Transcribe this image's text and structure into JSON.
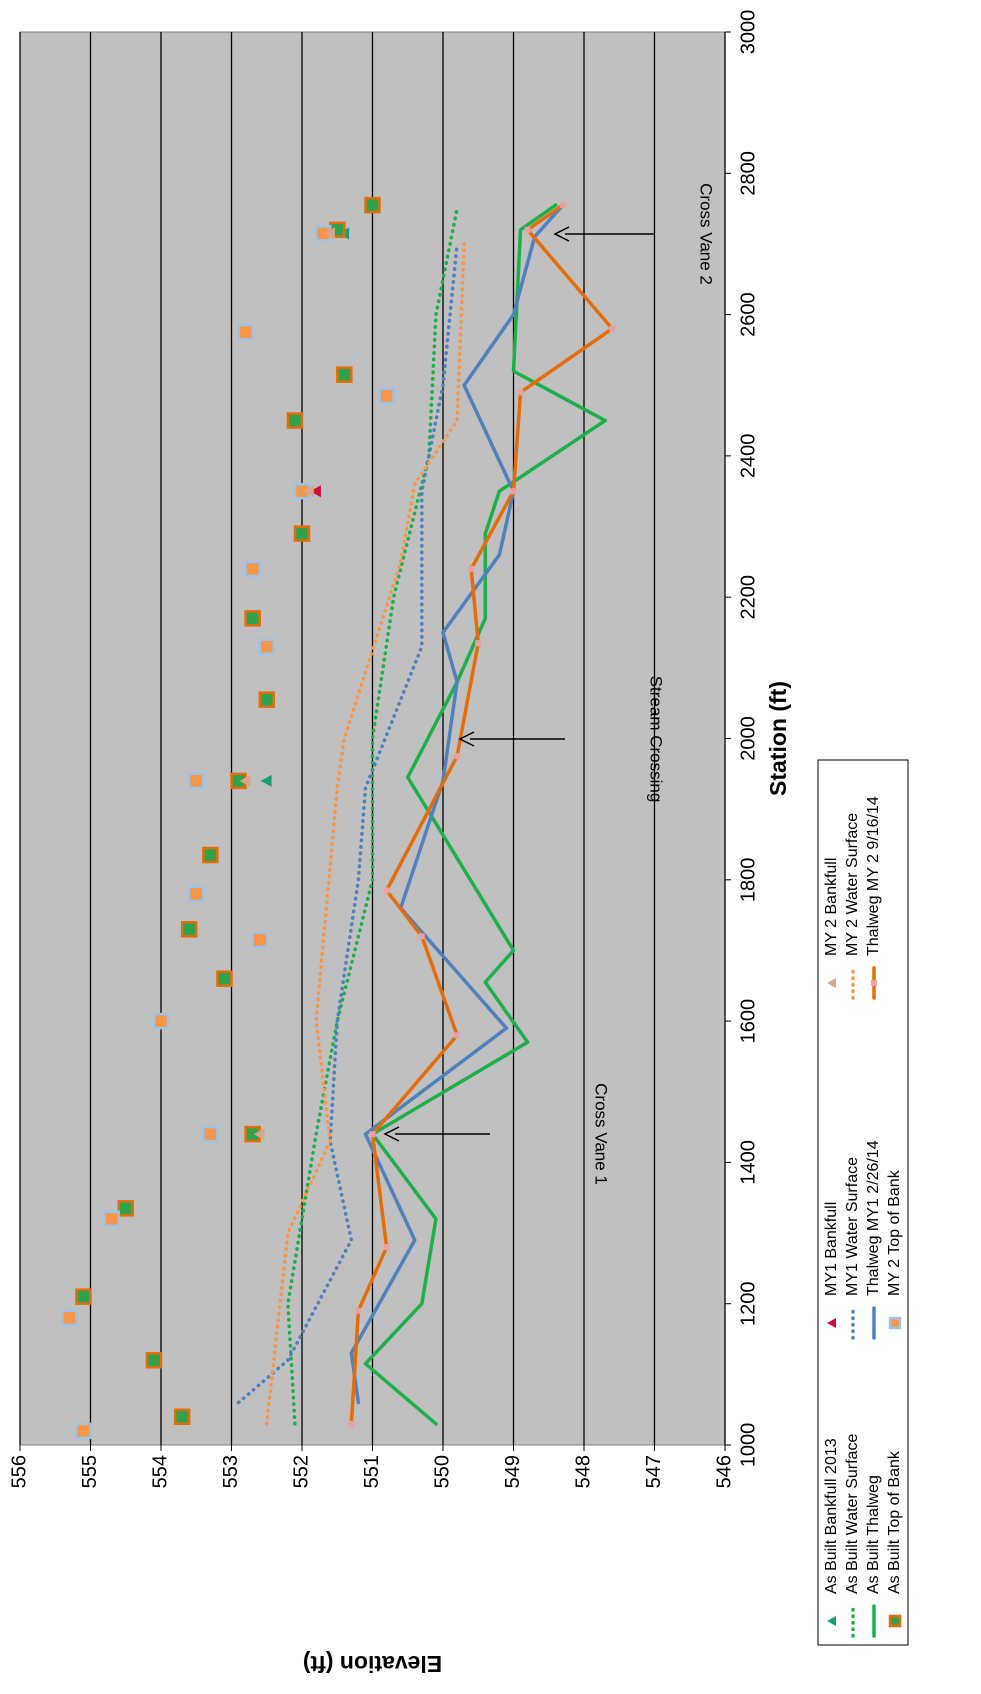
{
  "chart_data": {
    "type": "line",
    "x_label": "Station (ft)",
    "y_label": "Elevation (ft)",
    "xlim": [
      1000,
      3000
    ],
    "xticks": [
      1000,
      1200,
      1400,
      1600,
      1800,
      2000,
      2200,
      2400,
      2600,
      2800,
      3000
    ],
    "ylim": [
      546,
      556
    ],
    "yticks": [
      546,
      547,
      548,
      549,
      550,
      551,
      552,
      553,
      554,
      555,
      556
    ],
    "grid": true,
    "annotations": [
      {
        "text": "Cross Vane 1"
      },
      {
        "text": "Stream Crossing"
      },
      {
        "text": "Cross Vane 2"
      }
    ],
    "series": [
      {
        "name": "As Built Bankfull 2013",
        "style": "marker",
        "marker": "triangle",
        "color": "#1a9b7a",
        "x": [
          1940,
          2715
        ],
        "values": [
          552.5,
          551.4
        ]
      },
      {
        "name": "As Built Water Surface",
        "style": "dotted",
        "color": "#1db04a",
        "x": [
          1030,
          1200,
          1440,
          1600,
          1800,
          2000,
          2200,
          2400,
          2600,
          2750
        ],
        "values": [
          552.1,
          552.2,
          551.8,
          551.5,
          551.0,
          551.0,
          550.7,
          550.2,
          550.1,
          549.8
        ]
      },
      {
        "name": "As Built Thalweg",
        "style": "solid",
        "color": "#1db04a",
        "x": [
          1030,
          1115,
          1200,
          1320,
          1440,
          1570,
          1655,
          1700,
          1945,
          2080,
          2170,
          2290,
          2350,
          2450,
          2520,
          2720,
          2755
        ],
        "values": [
          550.1,
          551.1,
          550.3,
          550.1,
          551.0,
          548.8,
          549.4,
          549.0,
          550.5,
          549.8,
          549.4,
          549.4,
          549.2,
          547.7,
          549.0,
          548.9,
          548.4
        ]
      },
      {
        "name": "As Built Top of Bank",
        "style": "marker",
        "marker": "square",
        "color": "#2ea34c",
        "edge": "#e46c0a",
        "x": [
          1040,
          1120,
          1210,
          1335,
          1440,
          1660,
          1730,
          1835,
          1940,
          2055,
          2170,
          2290,
          2450,
          2515,
          2720,
          2755
        ],
        "values": [
          553.7,
          554.1,
          555.1,
          554.5,
          552.7,
          553.1,
          553.6,
          553.3,
          552.9,
          552.5,
          552.7,
          552.0,
          552.1,
          551.4,
          551.5,
          551.0
        ]
      },
      {
        "name": "MY1 Bankfull",
        "style": "marker",
        "marker": "triangle",
        "color": "#d0103a",
        "x": [
          2350
        ],
        "values": [
          551.8
        ]
      },
      {
        "name": "MY1 Water Surface",
        "style": "dotted",
        "color": "#4f81bd",
        "x": [
          1060,
          1120,
          1290,
          1430,
          1600,
          1800,
          1930,
          2130,
          2350,
          2500,
          2700
        ],
        "values": [
          552.9,
          552.2,
          551.3,
          551.6,
          551.5,
          551.2,
          551.1,
          550.3,
          550.3,
          550.0,
          549.8
        ]
      },
      {
        "name": "Thalweg MY1 2/26/14",
        "style": "solid",
        "color": "#4f81bd",
        "x": [
          1060,
          1130,
          1290,
          1440,
          1590,
          1760,
          1940,
          2080,
          2150,
          2260,
          2350,
          2500,
          2600,
          2710,
          2755
        ],
        "values": [
          551.2,
          551.3,
          550.4,
          551.1,
          549.1,
          550.6,
          550.0,
          549.8,
          550.0,
          549.2,
          549.0,
          549.7,
          549.0,
          548.7,
          548.3
        ]
      },
      {
        "name": "MY 2 Top of Bank",
        "style": "marker",
        "marker": "square",
        "color": "#f79646",
        "edge": "#9dc3e6",
        "x": [
          1020,
          1180,
          1320,
          1440,
          1600,
          1715,
          1780,
          1940,
          2130,
          2240,
          2350,
          2485,
          2575,
          2715
        ],
        "values": [
          555.1,
          555.3,
          554.7,
          553.3,
          554.0,
          552.6,
          553.5,
          553.5,
          552.5,
          552.7,
          552.0,
          550.8,
          552.8,
          551.7
        ]
      },
      {
        "name": "MY 2 Bankfull",
        "style": "marker",
        "marker": "triangle",
        "color": "#d9a38c",
        "x": [
          1440,
          1940,
          2350,
          2715
        ],
        "values": [
          552.6,
          552.8,
          551.9,
          551.6
        ]
      },
      {
        "name": "MY 2 Water Surface",
        "style": "dotted",
        "color": "#f79646",
        "x": [
          1030,
          1300,
          1430,
          1600,
          1930,
          2000,
          2250,
          2360,
          2450,
          2700
        ],
        "values": [
          552.5,
          552.2,
          551.6,
          551.8,
          551.5,
          551.4,
          550.6,
          550.4,
          549.8,
          549.7
        ]
      },
      {
        "name": "Thalweg MY 2 9/16/14",
        "style": "solid",
        "color": "#e46c0a",
        "vertex_color": "#e8a0a0",
        "x": [
          1030,
          1190,
          1280,
          1440,
          1580,
          1720,
          1785,
          1975,
          2135,
          2240,
          2350,
          2490,
          2580,
          2720,
          2755
        ],
        "values": [
          551.3,
          551.2,
          550.8,
          551.0,
          549.8,
          550.3,
          550.8,
          549.8,
          549.5,
          549.6,
          549.0,
          548.9,
          547.6,
          548.8,
          548.3
        ]
      }
    ]
  }
}
